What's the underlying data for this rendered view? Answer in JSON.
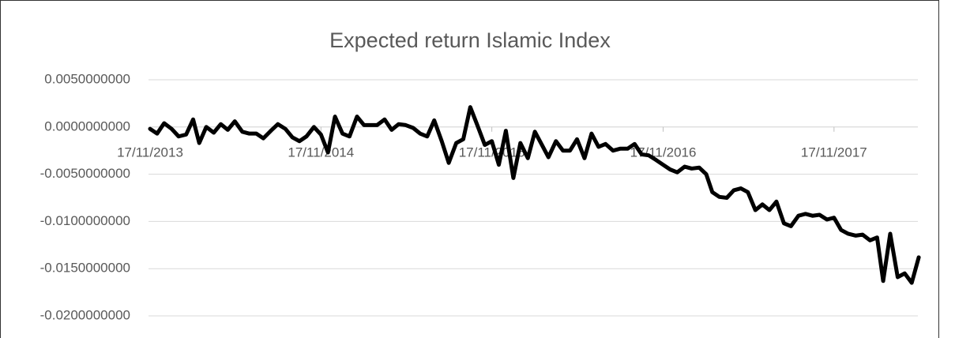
{
  "chart_data": {
    "type": "line",
    "title": "Expected return Islamic Index",
    "x": [
      "17/11/2013",
      "02/12/2013",
      "17/12/2013",
      "02/01/2014",
      "17/01/2014",
      "02/02/2014",
      "17/02/2014",
      "02/03/2014",
      "17/03/2014",
      "02/04/2014",
      "17/04/2014",
      "02/05/2014",
      "17/05/2014",
      "02/06/2014",
      "17/06/2014",
      "02/07/2014",
      "17/07/2014",
      "02/08/2014",
      "17/08/2014",
      "02/09/2014",
      "17/09/2014",
      "02/10/2014",
      "17/10/2014",
      "02/11/2014",
      "17/11/2014",
      "02/12/2014",
      "17/12/2014",
      "02/01/2015",
      "17/01/2015",
      "02/02/2015",
      "17/02/2015",
      "02/03/2015",
      "17/03/2015",
      "02/04/2015",
      "17/04/2015",
      "02/05/2015",
      "17/05/2015",
      "02/06/2015",
      "17/06/2015",
      "02/07/2015",
      "17/07/2015",
      "02/08/2015",
      "17/08/2015",
      "02/09/2015",
      "17/09/2015",
      "02/10/2015",
      "17/10/2015",
      "02/11/2015",
      "17/11/2015",
      "02/12/2015",
      "17/12/2015",
      "02/01/2016",
      "17/01/2016",
      "02/02/2016",
      "17/02/2016",
      "02/03/2016",
      "17/03/2016",
      "02/04/2016",
      "17/04/2016",
      "02/05/2016",
      "17/05/2016",
      "02/06/2016",
      "17/06/2016",
      "02/07/2016",
      "17/07/2016",
      "02/08/2016",
      "17/08/2016",
      "02/09/2016",
      "17/09/2016",
      "02/10/2016",
      "17/10/2016",
      "02/11/2016",
      "17/11/2016",
      "02/12/2016",
      "17/12/2016",
      "02/01/2017",
      "17/01/2017",
      "02/02/2017",
      "17/02/2017",
      "02/03/2017",
      "17/03/2017",
      "02/04/2017",
      "17/04/2017",
      "02/05/2017",
      "17/05/2017",
      "02/06/2017",
      "17/06/2017",
      "02/07/2017",
      "17/07/2017",
      "02/08/2017",
      "17/08/2017",
      "02/09/2017",
      "17/09/2017",
      "02/10/2017",
      "17/10/2017",
      "02/11/2017",
      "17/11/2017",
      "02/12/2017",
      "17/12/2017",
      "02/01/2018",
      "17/01/2018",
      "02/02/2018",
      "17/02/2018",
      "02/03/2018",
      "17/03/2018",
      "02/04/2018",
      "17/04/2018",
      "02/05/2018",
      "17/05/2018"
    ],
    "values": [
      -0.0002,
      -0.0007,
      0.0004,
      -0.0002,
      -0.001,
      -0.0008,
      0.0008,
      -0.0017,
      0.0,
      -0.0006,
      0.0003,
      -0.0003,
      0.0006,
      -0.0005,
      -0.0007,
      -0.0007,
      -0.0012,
      -0.0004,
      0.0003,
      -0.0002,
      -0.0011,
      -0.0015,
      -0.001,
      0.0,
      -0.0008,
      -0.0027,
      0.0011,
      -0.0007,
      -0.001,
      0.0011,
      0.0002,
      0.0002,
      0.0002,
      0.0008,
      -0.0003,
      0.0003,
      0.0002,
      -0.0001,
      -0.0007,
      -0.001,
      0.0007,
      -0.0015,
      -0.0038,
      -0.0017,
      -0.0013,
      0.0021,
      0.0002,
      -0.0019,
      -0.0015,
      -0.004,
      -0.0004,
      -0.0054,
      -0.0017,
      -0.0033,
      -0.0005,
      -0.0018,
      -0.0032,
      -0.0015,
      -0.0025,
      -0.0025,
      -0.0013,
      -0.0033,
      -0.0007,
      -0.0021,
      -0.0018,
      -0.0025,
      -0.0023,
      -0.0023,
      -0.0018,
      -0.0029,
      -0.003,
      -0.0035,
      -0.004,
      -0.0045,
      -0.0048,
      -0.0042,
      -0.0044,
      -0.0043,
      -0.005,
      -0.0069,
      -0.0074,
      -0.0075,
      -0.0067,
      -0.0065,
      -0.0069,
      -0.0088,
      -0.0082,
      -0.0088,
      -0.0079,
      -0.0102,
      -0.0105,
      -0.0094,
      -0.0092,
      -0.0094,
      -0.0093,
      -0.0098,
      -0.0096,
      -0.0109,
      -0.0113,
      -0.0115,
      -0.0114,
      -0.012,
      -0.0117,
      -0.0163,
      -0.0113,
      -0.0159,
      -0.0155,
      -0.0165,
      -0.0138
    ],
    "color": "#000000",
    "xlim": [
      "17/11/2013",
      "01/06/2018"
    ],
    "xticks": [
      "17/11/2013",
      "17/11/2014",
      "17/11/2015",
      "17/11/2016",
      "17/11/2017"
    ],
    "ylim": [
      -0.02,
      0.005
    ],
    "yticks": [
      {
        "value": 0.005,
        "label": "0.0050000000"
      },
      {
        "value": 0,
        "label": "0.0000000000"
      },
      {
        "value": -0.005,
        "label": "-0.0050000000"
      },
      {
        "value": -0.01,
        "label": "-0.0100000000"
      },
      {
        "value": -0.015,
        "label": "-0.0150000000"
      },
      {
        "value": -0.02,
        "label": "-0.0200000000"
      }
    ],
    "grid": true
  }
}
